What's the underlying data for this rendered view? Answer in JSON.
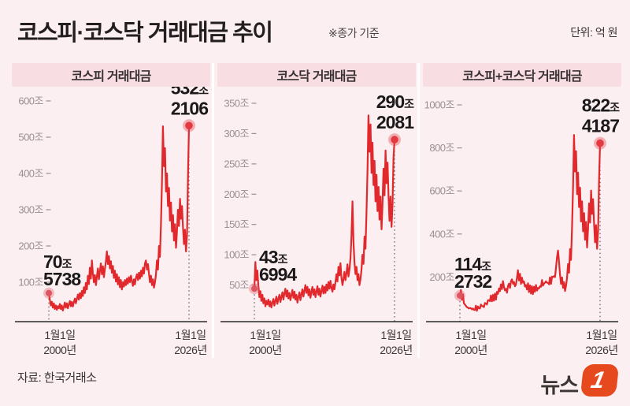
{
  "header": {
    "title": "코스피·코스닥 거래대금 추이",
    "note": "※종가 기준",
    "unit": "단위: 억 원"
  },
  "footer": {
    "source": "자료: 한국거래소",
    "logo_text": "뉴스",
    "logo_badge": "1"
  },
  "colors": {
    "background": "#fbeff1",
    "panel_header_bg": "#f8dde3",
    "line": "#e1282d",
    "dot_core": "#e23a40",
    "dot_halo": "rgba(228,70,80,0.38)",
    "axis": "#2b2b2b",
    "tick_text": "#9b8f92",
    "logo_red": "#e7491f"
  },
  "x_axis": {
    "start": [
      "1월1일",
      "2000년"
    ],
    "end": [
      "1월1일",
      "2026년"
    ]
  },
  "chart_data": [
    {
      "type": "line",
      "title": "코스피 거래대금",
      "ylabel_unit": "조 (원), 종가 기준, 축 단위: 억 원",
      "x_range": [
        "2000-01-01",
        "2026-01-01"
      ],
      "y_ticks": [
        600,
        500,
        400,
        300,
        200,
        100
      ],
      "y_tick_suffix": "조",
      "start_point": {
        "num": "70",
        "unit": "조",
        "dec": "5738",
        "value": 70.5738
      },
      "end_point": {
        "num": "532",
        "unit": "조",
        "dec": "2106",
        "value": 532.2106
      },
      "values": [
        70,
        52,
        36,
        46,
        30,
        42,
        26,
        36,
        24,
        34,
        28,
        40,
        26,
        36,
        22,
        32,
        44,
        30,
        42,
        28,
        38,
        48,
        34,
        46,
        33,
        45,
        55,
        42,
        54,
        66,
        52,
        70,
        56,
        76,
        62,
        86,
        70,
        98,
        80,
        118,
        95,
        140,
        110,
        160,
        125,
        100,
        120,
        92,
        115,
        138,
        108,
        130,
        152,
        122,
        144,
        114,
        136,
        158,
        185,
        150,
        172,
        138,
        158,
        126,
        145,
        112,
        132,
        102,
        122,
        94,
        114,
        86,
        106,
        80,
        100,
        88,
        106,
        92,
        110,
        96,
        114,
        100,
        118,
        104,
        90,
        108,
        94,
        112,
        122,
        106,
        126,
        110,
        132,
        116,
        140,
        124,
        152,
        160,
        135,
        150,
        125,
        100,
        118,
        92,
        108,
        85,
        100,
        120,
        160,
        135,
        200,
        170,
        260,
        380,
        530,
        420,
        470,
        350,
        400,
        310,
        360,
        270,
        320,
        240,
        285,
        215,
        260,
        195,
        240,
        300,
        255,
        330,
        275,
        310,
        250,
        205,
        245,
        185,
        230,
        390,
        532
      ]
    },
    {
      "type": "line",
      "title": "코스닥 거래대금",
      "ylabel_unit": "조 (원), 종가 기준, 축 단위: 억 원",
      "x_range": [
        "2000-01-01",
        "2026-01-01"
      ],
      "y_ticks": [
        350,
        300,
        250,
        200,
        150,
        100,
        50
      ],
      "y_tick_suffix": "조",
      "start_point": {
        "num": "43",
        "unit": "조",
        "dec": "6994",
        "value": 43.6994
      },
      "end_point": {
        "num": "290",
        "unit": "조",
        "dec": "2081",
        "value": 290.2081
      },
      "values": [
        44,
        88,
        58,
        74,
        48,
        30,
        40,
        24,
        34,
        20,
        28,
        15,
        24,
        18,
        26,
        15,
        23,
        13,
        21,
        27,
        16,
        24,
        31,
        19,
        27,
        34,
        22,
        30,
        38,
        26,
        36,
        44,
        31,
        41,
        28,
        37,
        25,
        33,
        42,
        29,
        39,
        26,
        34,
        21,
        30,
        38,
        25,
        35,
        43,
        31,
        41,
        50,
        37,
        47,
        33,
        43,
        29,
        39,
        47,
        34,
        43,
        30,
        39,
        48,
        34,
        44,
        31,
        40,
        49,
        36,
        47,
        37,
        51,
        41,
        55,
        44,
        57,
        45,
        39,
        51,
        43,
        55,
        68,
        56,
        80,
        66,
        86,
        62,
        50,
        60,
        72,
        58,
        70,
        84,
        64,
        76,
        95,
        130,
        188,
        120,
        88,
        68,
        80,
        58,
        68,
        50,
        60,
        75,
        100,
        85,
        130,
        110,
        170,
        240,
        330,
        270,
        315,
        235,
        285,
        215,
        255,
        188,
        232,
        172,
        212,
        158,
        196,
        142,
        182,
        242,
        198,
        272,
        218,
        252,
        196,
        156,
        196,
        146,
        185,
        260,
        290
      ]
    },
    {
      "type": "line",
      "title": "코스피+코스닥 거래대금",
      "ylabel_unit": "조 (원), 종가 기준, 축 단위: 억 원",
      "x_range": [
        "2000-01-01",
        "2026-01-01"
      ],
      "y_ticks": [
        1000,
        800,
        600,
        400,
        200
      ],
      "y_tick_suffix": "조",
      "start_point": {
        "num": "114",
        "unit": "조",
        "dec": "2732",
        "value": 114.2732
      },
      "end_point": {
        "num": "822",
        "unit": "조",
        "dec": "4187",
        "value": 822.4187
      },
      "values": [
        114,
        140,
        94,
        120,
        78,
        72,
        66,
        60,
        58,
        54,
        56,
        55,
        50,
        54,
        48,
        47,
        67,
        43,
        63,
        55,
        54,
        72,
        65,
        65,
        60,
        79,
        77,
        72,
        92,
        92,
        88,
        114,
        87,
        117,
        90,
        123,
        95,
        131,
        122,
        147,
        134,
        166,
        144,
        181,
        155,
        138,
        145,
        127,
        158,
        169,
        149,
        180,
        189,
        169,
        177,
        157,
        165,
        197,
        232,
        184,
        215,
        168,
        197,
        174,
        179,
        156,
        163,
        142,
        171,
        130,
        161,
        123,
        157,
        121,
        155,
        132,
        163,
        137,
        149,
        147,
        157,
        155,
        186,
        160,
        170,
        174,
        180,
        174,
        172,
        166,
        198,
        168,
        202,
        200,
        204,
        200,
        247,
        290,
        323,
        270,
        213,
        168,
        198,
        150,
        176,
        135,
        160,
        195,
        260,
        220,
        330,
        280,
        430,
        620,
        860,
        690,
        785,
        585,
        685,
        525,
        615,
        458,
        552,
        412,
        497,
        373,
        456,
        337,
        422,
        542,
        453,
        602,
        493,
        562,
        446,
        361,
        441,
        331,
        415,
        650,
        822
      ]
    }
  ]
}
